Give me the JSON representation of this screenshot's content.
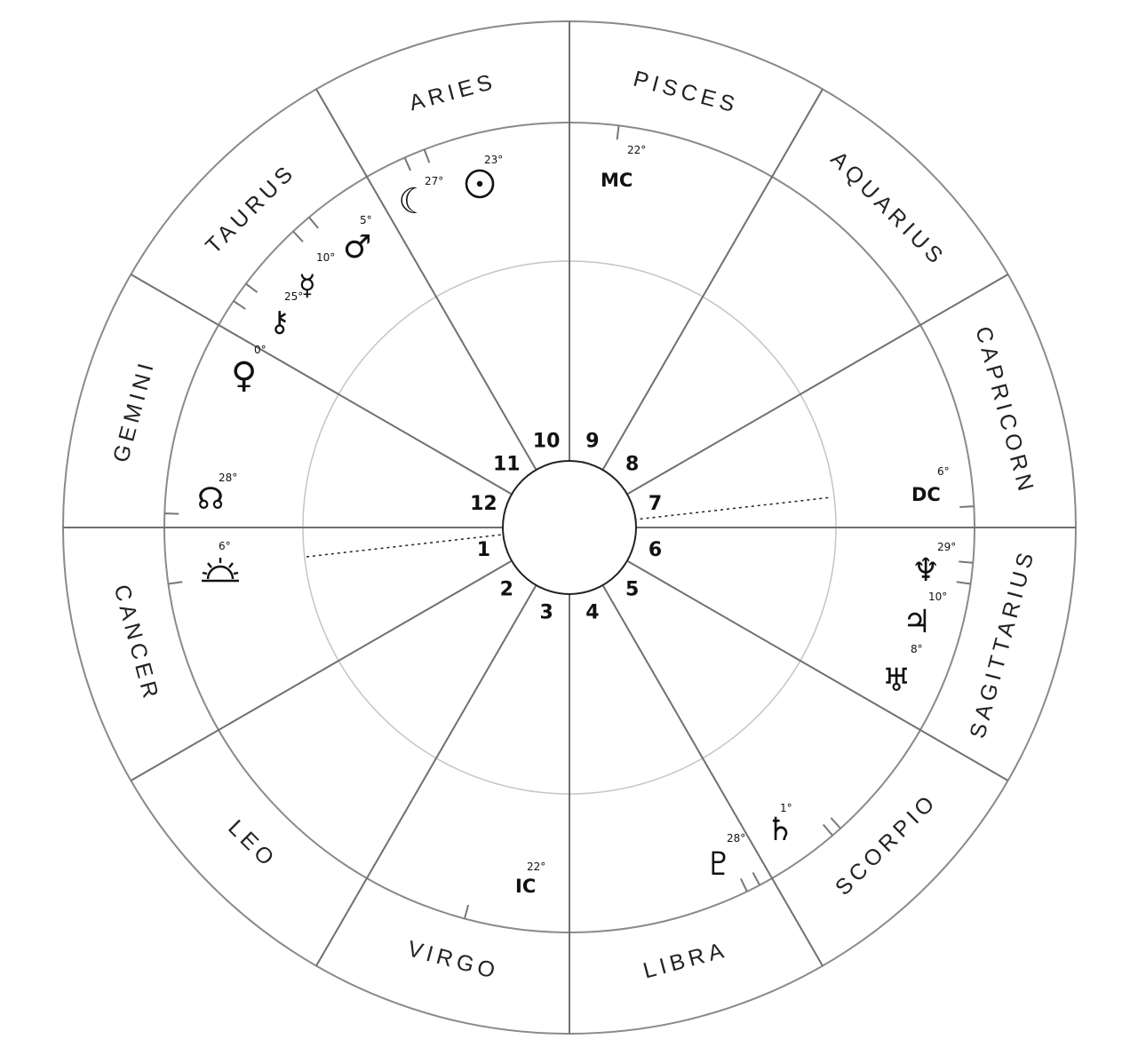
{
  "signs": [
    {
      "name": "ARIES",
      "slice": 0
    },
    {
      "name": "PISCES",
      "slice": 1
    },
    {
      "name": "AQUARIUS",
      "slice": 2
    },
    {
      "name": "CAPRICORN",
      "slice": 3
    },
    {
      "name": "SAGITTARIUS",
      "slice": 4
    },
    {
      "name": "SCORPIO",
      "slice": 5
    },
    {
      "name": "LIBRA",
      "slice": 6
    },
    {
      "name": "VIRGO",
      "slice": 7
    },
    {
      "name": "LEO",
      "slice": 8
    },
    {
      "name": "CANCER",
      "slice": 9
    },
    {
      "name": "GEMINI",
      "slice": 10
    },
    {
      "name": "TAURUS",
      "slice": 11
    }
  ],
  "houses": [
    "1",
    "2",
    "3",
    "4",
    "5",
    "6",
    "7",
    "8",
    "9",
    "10",
    "11",
    "12"
  ],
  "points": [
    {
      "id": "sun",
      "label": "sun",
      "glyph": "☉",
      "degree": "23°"
    },
    {
      "id": "moon",
      "label": "moon",
      "glyph": "☾",
      "degree": "27°"
    },
    {
      "id": "mars",
      "label": "mars",
      "glyph": "♂",
      "degree": "5°"
    },
    {
      "id": "mercury",
      "label": "mercury",
      "glyph": "☿",
      "degree": "10°"
    },
    {
      "id": "chiron",
      "label": "chiron",
      "glyph": "⚷",
      "degree": "25°"
    },
    {
      "id": "venus",
      "label": "venus",
      "glyph": "♀",
      "degree": "0°"
    },
    {
      "id": "north-node",
      "label": "north-node",
      "glyph": "☊",
      "degree": "28°"
    },
    {
      "id": "ascendant",
      "label": "ascendant",
      "glyph": "sunrise",
      "degree": "6°"
    },
    {
      "id": "neptune",
      "label": "neptune",
      "glyph": "♆",
      "degree": "29°"
    },
    {
      "id": "jupiter",
      "label": "jupiter",
      "glyph": "♃",
      "degree": "10°"
    },
    {
      "id": "uranus",
      "label": "uranus",
      "glyph": "♅",
      "degree": "8°"
    },
    {
      "id": "saturn",
      "label": "saturn",
      "glyph": "♄",
      "degree": "1°"
    },
    {
      "id": "pluto",
      "label": "pluto",
      "glyph": "♇",
      "degree": "28°"
    }
  ],
  "axes": {
    "mc": {
      "label": "MC",
      "degree": "22°"
    },
    "ic": {
      "label": "IC",
      "degree": "22°"
    },
    "dc": {
      "label": "DC",
      "degree": "6°"
    }
  }
}
